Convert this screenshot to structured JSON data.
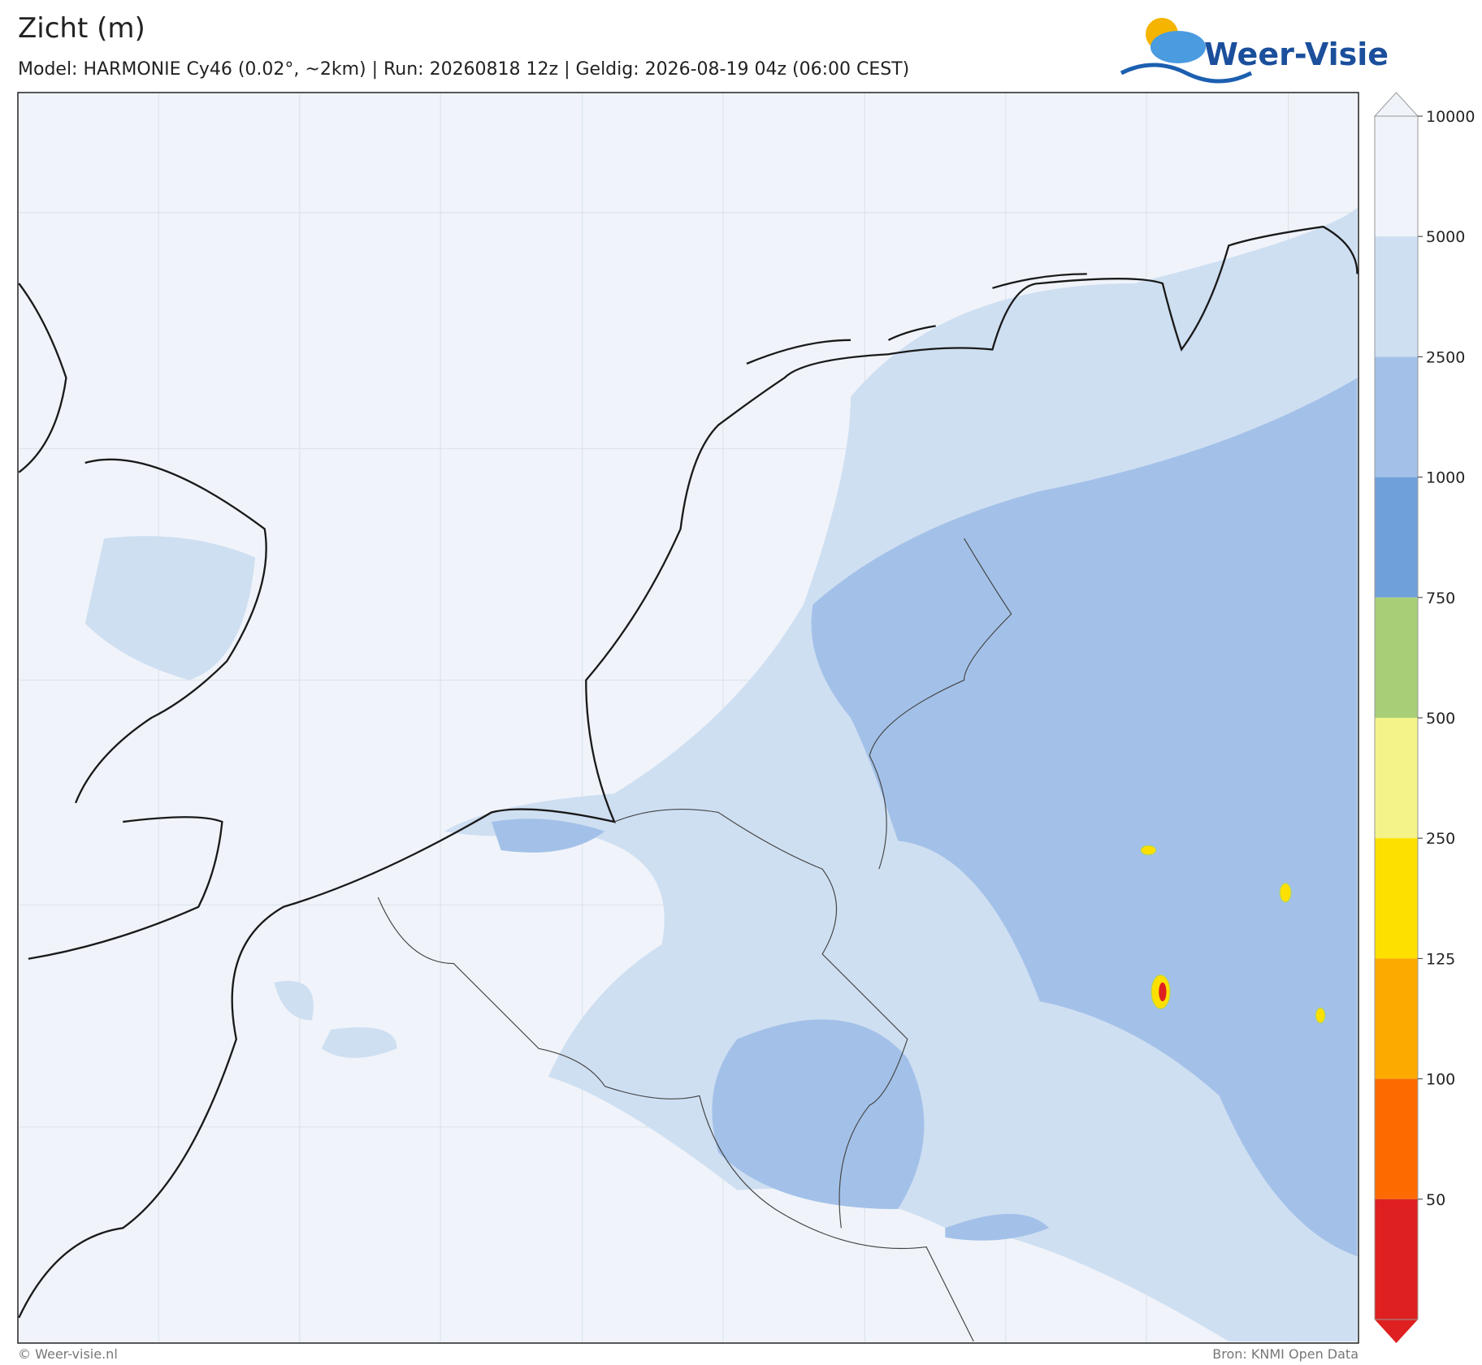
{
  "header": {
    "title": "Zicht (m)",
    "subtitle": "Model: HARMONIE Cy46 (0.02°, ~2km)  |  Run: 20260818 12z  |  Geldig: 2026-08-19 04z (06:00 CEST)",
    "logo": "Weer-Visie"
  },
  "colorbar": {
    "levels": [
      10000,
      5000,
      2500,
      1000,
      750,
      500,
      250,
      125,
      100,
      50
    ],
    "colors": [
      "#f0f4fa",
      "#cfdff2",
      "#a3c1e8",
      "#6fa0da",
      "#a8cf78",
      "#f3f38a",
      "#fde000",
      "#fdaa00",
      "#fd6a00",
      "#de2020"
    ]
  },
  "footer": {
    "left": "© Weer-visie.nl",
    "right": "Bron: KNMI Open Data"
  }
}
